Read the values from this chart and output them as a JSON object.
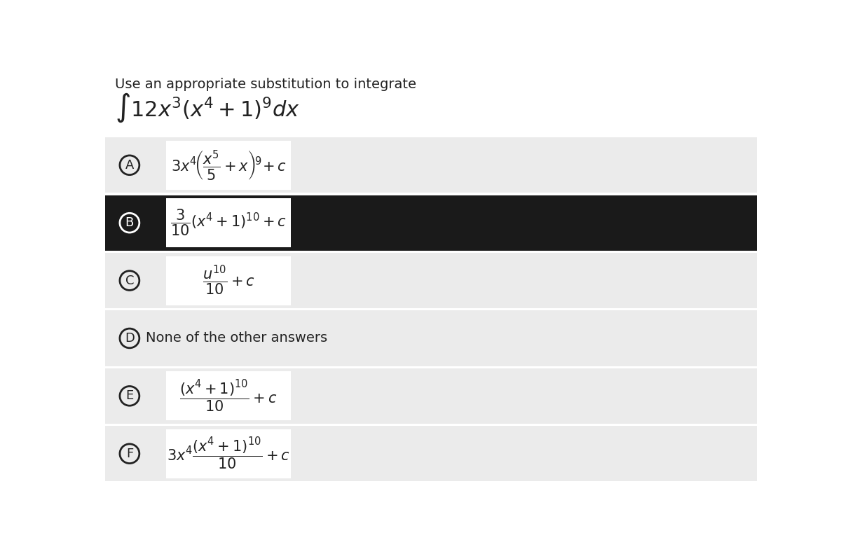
{
  "page_bg": "#ffffff",
  "row_bg": "#ebebeb",
  "selected_row_bg": "#1a1a1a",
  "formula_box_bg": "#ffffff",
  "text_color": "#222222",
  "selected_text_color": "#ffffff",
  "title_text": "Use an appropriate substitution to integrate",
  "integral_latex": "$\\int 12x^3(x^4+1)^9dx$",
  "separator_color": "#ffffff",
  "options": [
    {
      "label": "A",
      "latex": "$3x^4\\!\\left(\\dfrac{x^5}{5}+x\\right)^{\\!9}\\!+c$",
      "selected": false,
      "plain_text": false
    },
    {
      "label": "B",
      "latex": "$\\dfrac{3}{10}(x^4+1)^{10}+c$",
      "selected": true,
      "plain_text": false
    },
    {
      "label": "C",
      "latex": "$\\dfrac{u^{10}}{10}+c$",
      "selected": false,
      "plain_text": false
    },
    {
      "label": "D",
      "latex": "None of the other answers",
      "selected": false,
      "plain_text": true
    },
    {
      "label": "E",
      "latex": "$\\dfrac{(x^4+1)^{10}}{10}+c$",
      "selected": false,
      "plain_text": false
    },
    {
      "label": "F",
      "latex": "$3x^4\\dfrac{(x^4+1)^{10}}{10}+c$",
      "selected": false,
      "plain_text": false
    }
  ]
}
